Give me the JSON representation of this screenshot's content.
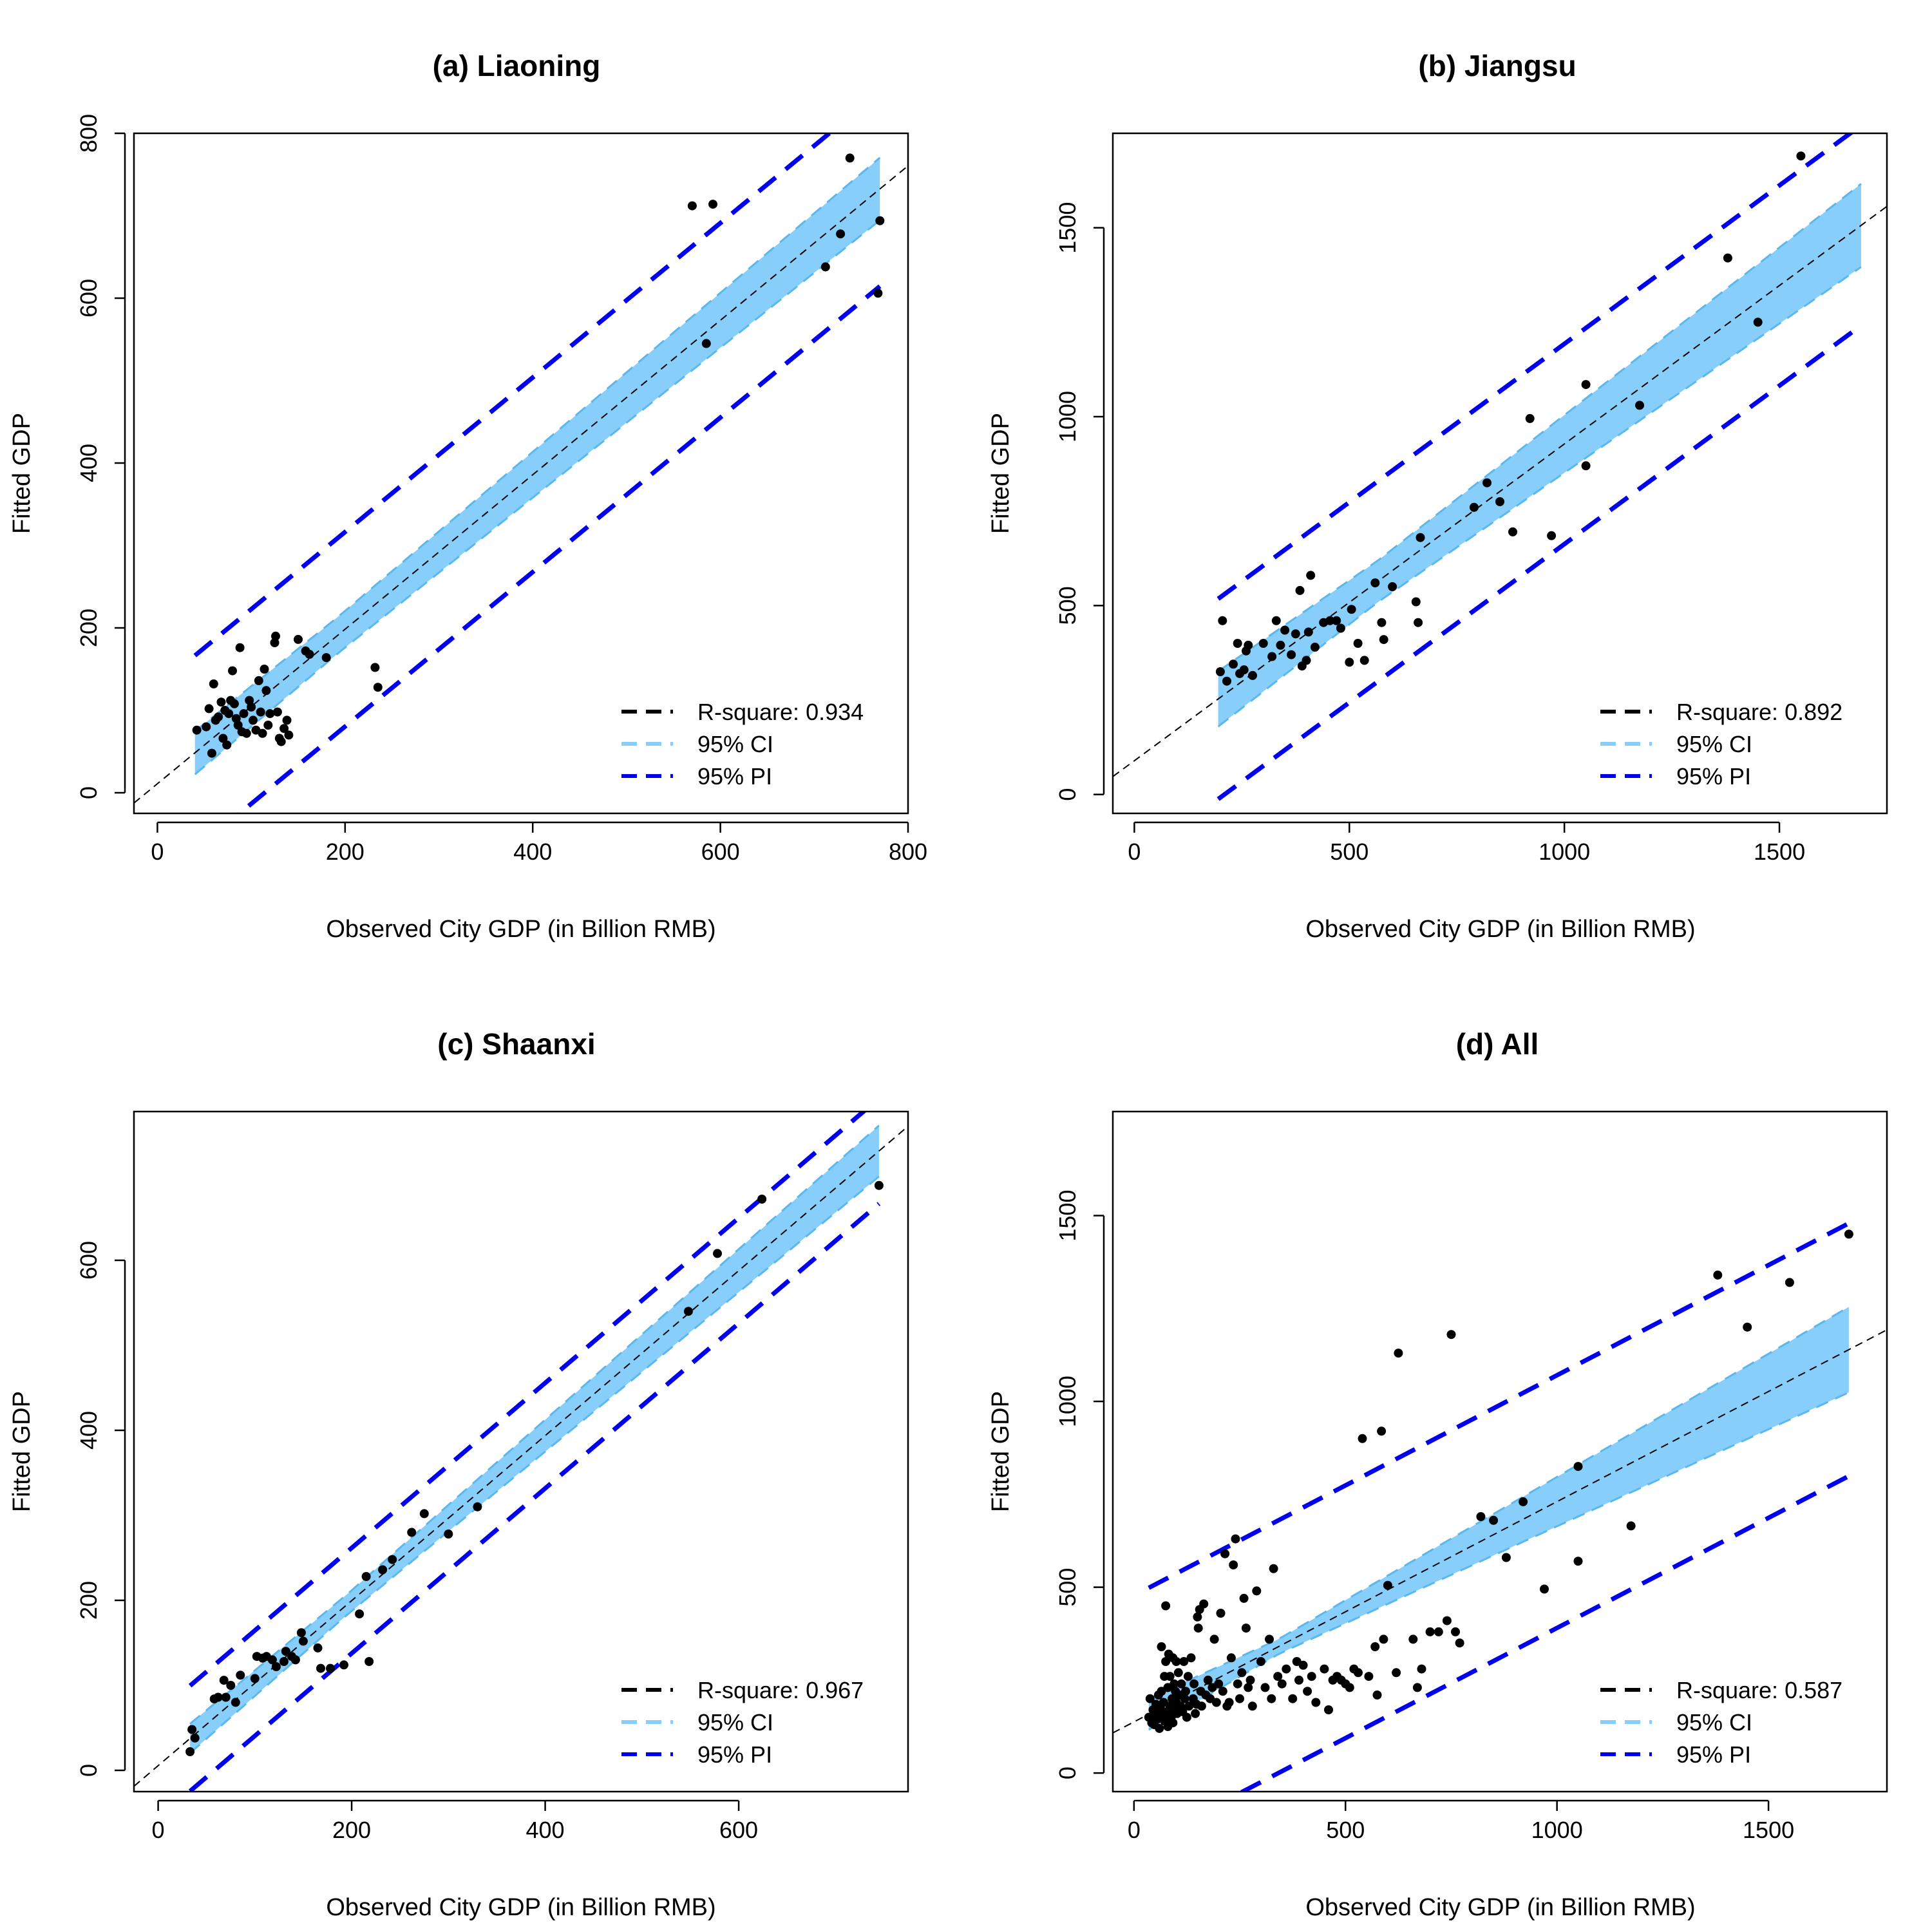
{
  "colors": {
    "ci_fill": "#87CEFA",
    "ci_line": "#87CEFA",
    "pi_line": "#0000EE",
    "points": "#000000",
    "fit": "#000000"
  },
  "legend": {
    "ci_label": "95% CI",
    "pi_label": "95% PI"
  },
  "chart_data": [
    {
      "type": "scatter",
      "title": "(a) Liaoning",
      "xlabel": "Observed City GDP (in Billion RMB)",
      "ylabel": "Fitted GDP",
      "xlim": [
        -25,
        800
      ],
      "ylim": [
        -25,
        800
      ],
      "xticks": [
        0,
        200,
        400,
        600,
        800
      ],
      "yticks": [
        0,
        200,
        400,
        600,
        800
      ],
      "r_square_label": "R-square: 0.934",
      "band_range": [
        40,
        770
      ],
      "ci_half": [
        22,
        38
      ],
      "pi_offset": 118,
      "points": [
        [
          42,
          76
        ],
        [
          52,
          80
        ],
        [
          55,
          102
        ],
        [
          58,
          48
        ],
        [
          60,
          132
        ],
        [
          62,
          88
        ],
        [
          65,
          92
        ],
        [
          68,
          110
        ],
        [
          70,
          66
        ],
        [
          72,
          100
        ],
        [
          74,
          58
        ],
        [
          76,
          96
        ],
        [
          78,
          112
        ],
        [
          80,
          148
        ],
        [
          82,
          108
        ],
        [
          84,
          90
        ],
        [
          86,
          82
        ],
        [
          88,
          176
        ],
        [
          90,
          74
        ],
        [
          92,
          96
        ],
        [
          95,
          72
        ],
        [
          98,
          112
        ],
        [
          100,
          104
        ],
        [
          102,
          88
        ],
        [
          105,
          76
        ],
        [
          108,
          136
        ],
        [
          110,
          98
        ],
        [
          112,
          72
        ],
        [
          114,
          150
        ],
        [
          116,
          124
        ],
        [
          118,
          82
        ],
        [
          120,
          96
        ],
        [
          125,
          182
        ],
        [
          126,
          190
        ],
        [
          128,
          98
        ],
        [
          130,
          66
        ],
        [
          132,
          62
        ],
        [
          135,
          78
        ],
        [
          138,
          88
        ],
        [
          140,
          70
        ],
        [
          150,
          186
        ],
        [
          158,
          172
        ],
        [
          162,
          168
        ],
        [
          180,
          164
        ],
        [
          232,
          152
        ],
        [
          235,
          128
        ],
        [
          570,
          712
        ],
        [
          585,
          545
        ],
        [
          592,
          714
        ],
        [
          712,
          638
        ],
        [
          728,
          678
        ],
        [
          738,
          770
        ],
        [
          768,
          606
        ],
        [
          770,
          694
        ]
      ]
    },
    {
      "type": "scatter",
      "title": "(b) Jiangsu",
      "xlabel": "Observed City GDP (in Billion RMB)",
      "ylabel": "Fitted GDP",
      "xlim": [
        -50,
        1750
      ],
      "ylim": [
        -50,
        1750
      ],
      "xticks": [
        0,
        500,
        1000,
        1500
      ],
      "yticks": [
        0,
        500,
        1000,
        1500
      ],
      "r_square_label": "R-square: 0.892",
      "band_range": [
        195,
        1690
      ],
      "ci_half": [
        55,
        110
      ],
      "pi_offset": 265,
      "points": [
        [
          200,
          325
        ],
        [
          205,
          460
        ],
        [
          215,
          300
        ],
        [
          230,
          345
        ],
        [
          240,
          400
        ],
        [
          245,
          320
        ],
        [
          255,
          330
        ],
        [
          260,
          380
        ],
        [
          265,
          395
        ],
        [
          275,
          315
        ],
        [
          300,
          400
        ],
        [
          320,
          365
        ],
        [
          330,
          460
        ],
        [
          340,
          395
        ],
        [
          350,
          435
        ],
        [
          365,
          370
        ],
        [
          375,
          425
        ],
        [
          385,
          540
        ],
        [
          390,
          340
        ],
        [
          400,
          355
        ],
        [
          405,
          430
        ],
        [
          410,
          580
        ],
        [
          420,
          390
        ],
        [
          440,
          455
        ],
        [
          455,
          460
        ],
        [
          470,
          460
        ],
        [
          480,
          440
        ],
        [
          500,
          350
        ],
        [
          505,
          490
        ],
        [
          520,
          400
        ],
        [
          535,
          355
        ],
        [
          560,
          560
        ],
        [
          575,
          455
        ],
        [
          580,
          410
        ],
        [
          600,
          550
        ],
        [
          655,
          510
        ],
        [
          660,
          455
        ],
        [
          665,
          680
        ],
        [
          790,
          760
        ],
        [
          820,
          825
        ],
        [
          850,
          775
        ],
        [
          880,
          695
        ],
        [
          920,
          995
        ],
        [
          970,
          685
        ],
        [
          1050,
          1085
        ],
        [
          1050,
          870
        ],
        [
          1175,
          1030
        ],
        [
          1380,
          1420
        ],
        [
          1450,
          1250
        ],
        [
          1550,
          1690
        ]
      ]
    },
    {
      "type": "scatter",
      "title": "(c) Shaanxi",
      "xlabel": "Observed City GDP (in Billion RMB)",
      "ylabel": "Fitted GDP",
      "xlim": [
        -25,
        775
      ],
      "ylim": [
        -25,
        775
      ],
      "xticks": [
        0,
        200,
        400,
        600
      ],
      "yticks": [
        0,
        200,
        400,
        600
      ],
      "r_square_label": "R-square: 0.967",
      "band_range": [
        33,
        745
      ],
      "ci_half": [
        12,
        30
      ],
      "pi_offset": 62,
      "points": [
        [
          33,
          22
        ],
        [
          35,
          48
        ],
        [
          38,
          38
        ],
        [
          58,
          84
        ],
        [
          62,
          86
        ],
        [
          68,
          106
        ],
        [
          70,
          86
        ],
        [
          75,
          100
        ],
        [
          80,
          80
        ],
        [
          85,
          112
        ],
        [
          100,
          108
        ],
        [
          102,
          134
        ],
        [
          108,
          132
        ],
        [
          112,
          134
        ],
        [
          118,
          130
        ],
        [
          122,
          122
        ],
        [
          130,
          128
        ],
        [
          132,
          140
        ],
        [
          138,
          134
        ],
        [
          142,
          130
        ],
        [
          148,
          162
        ],
        [
          150,
          152
        ],
        [
          165,
          144
        ],
        [
          168,
          120
        ],
        [
          178,
          120
        ],
        [
          192,
          124
        ],
        [
          208,
          184
        ],
        [
          215,
          228
        ],
        [
          218,
          128
        ],
        [
          232,
          236
        ],
        [
          242,
          248
        ],
        [
          262,
          280
        ],
        [
          275,
          302
        ],
        [
          300,
          278
        ],
        [
          330,
          310
        ],
        [
          548,
          540
        ],
        [
          578,
          608
        ],
        [
          624,
          672
        ],
        [
          745,
          688
        ]
      ]
    },
    {
      "type": "scatter",
      "title": "(d) All",
      "xlabel": "Observed City GDP (in Billion RMB)",
      "ylabel": "Fitted GDP",
      "xlim": [
        -50,
        1780
      ],
      "ylim": [
        -50,
        1780
      ],
      "xticks": [
        0,
        500,
        1000,
        1500
      ],
      "yticks": [
        0,
        500,
        1000,
        1500
      ],
      "r_square_label": "R-square: 0.587",
      "band_range": [
        35,
        1690
      ],
      "ci_half": [
        20,
        115
      ],
      "pi_offset": 340,
      "points": [
        [
          35,
          150
        ],
        [
          38,
          200
        ],
        [
          42,
          135
        ],
        [
          45,
          170
        ],
        [
          48,
          130
        ],
        [
          50,
          160
        ],
        [
          52,
          185
        ],
        [
          55,
          145
        ],
        [
          58,
          210
        ],
        [
          60,
          120
        ],
        [
          62,
          175
        ],
        [
          65,
          340
        ],
        [
          65,
          220
        ],
        [
          68,
          155
        ],
        [
          70,
          190
        ],
        [
          72,
          260
        ],
        [
          72,
          140
        ],
        [
          75,
          300
        ],
        [
          75,
          450
        ],
        [
          78,
          165
        ],
        [
          80,
          230
        ],
        [
          80,
          125
        ],
        [
          82,
          320
        ],
        [
          85,
          180
        ],
        [
          85,
          260
        ],
        [
          88,
          150
        ],
        [
          90,
          200
        ],
        [
          92,
          310
        ],
        [
          92,
          135
        ],
        [
          95,
          170
        ],
        [
          95,
          240
        ],
        [
          98,
          220
        ],
        [
          100,
          190
        ],
        [
          100,
          300
        ],
        [
          102,
          160
        ],
        [
          105,
          270
        ],
        [
          108,
          210
        ],
        [
          110,
          180
        ],
        [
          112,
          240
        ],
        [
          115,
          165
        ],
        [
          118,
          300
        ],
        [
          120,
          200
        ],
        [
          122,
          220
        ],
        [
          125,
          150
        ],
        [
          128,
          260
        ],
        [
          130,
          180
        ],
        [
          135,
          310
        ],
        [
          140,
          200
        ],
        [
          142,
          240
        ],
        [
          145,
          160
        ],
        [
          148,
          185
        ],
        [
          150,
          420
        ],
        [
          152,
          390
        ],
        [
          155,
          440
        ],
        [
          158,
          220
        ],
        [
          160,
          180
        ],
        [
          165,
          455
        ],
        [
          170,
          210
        ],
        [
          175,
          250
        ],
        [
          180,
          200
        ],
        [
          185,
          230
        ],
        [
          190,
          360
        ],
        [
          195,
          190
        ],
        [
          200,
          240
        ],
        [
          205,
          430
        ],
        [
          210,
          220
        ],
        [
          215,
          590
        ],
        [
          220,
          180
        ],
        [
          225,
          190
        ],
        [
          230,
          310
        ],
        [
          235,
          560
        ],
        [
          240,
          630
        ],
        [
          245,
          240
        ],
        [
          250,
          200
        ],
        [
          255,
          270
        ],
        [
          260,
          470
        ],
        [
          265,
          390
        ],
        [
          270,
          230
        ],
        [
          275,
          250
        ],
        [
          280,
          180
        ],
        [
          290,
          490
        ],
        [
          300,
          300
        ],
        [
          310,
          230
        ],
        [
          320,
          360
        ],
        [
          325,
          200
        ],
        [
          330,
          550
        ],
        [
          340,
          260
        ],
        [
          350,
          240
        ],
        [
          360,
          280
        ],
        [
          375,
          200
        ],
        [
          385,
          300
        ],
        [
          390,
          250
        ],
        [
          400,
          290
        ],
        [
          410,
          220
        ],
        [
          420,
          260
        ],
        [
          430,
          190
        ],
        [
          450,
          280
        ],
        [
          460,
          170
        ],
        [
          470,
          250
        ],
        [
          480,
          260
        ],
        [
          490,
          250
        ],
        [
          500,
          240
        ],
        [
          510,
          230
        ],
        [
          520,
          280
        ],
        [
          530,
          270
        ],
        [
          540,
          900
        ],
        [
          555,
          260
        ],
        [
          570,
          340
        ],
        [
          575,
          210
        ],
        [
          585,
          920
        ],
        [
          590,
          360
        ],
        [
          600,
          505
        ],
        [
          620,
          270
        ],
        [
          625,
          1130
        ],
        [
          660,
          360
        ],
        [
          670,
          230
        ],
        [
          680,
          280
        ],
        [
          700,
          380
        ],
        [
          720,
          380
        ],
        [
          740,
          410
        ],
        [
          750,
          1180
        ],
        [
          760,
          380
        ],
        [
          770,
          350
        ],
        [
          820,
          690
        ],
        [
          850,
          680
        ],
        [
          880,
          580
        ],
        [
          920,
          730
        ],
        [
          970,
          495
        ],
        [
          1050,
          825
        ],
        [
          1050,
          570
        ],
        [
          1175,
          665
        ],
        [
          1380,
          1340
        ],
        [
          1450,
          1200
        ],
        [
          1550,
          1320
        ],
        [
          1690,
          1450
        ]
      ]
    }
  ]
}
